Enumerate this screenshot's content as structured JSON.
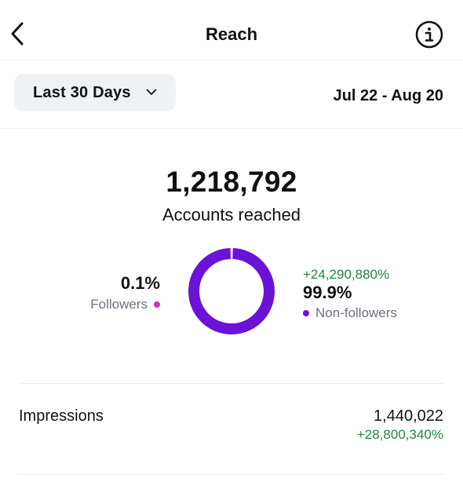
{
  "header": {
    "title": "Reach",
    "back_icon": "chevron-left-icon",
    "info_icon": "info-circle-icon"
  },
  "filters": {
    "range_label": "Last 30 Days",
    "range_icon": "chevron-down-icon",
    "date_range": "Jul 22 - Aug 20"
  },
  "summary": {
    "accounts_reached": "1,218,792",
    "accounts_reached_label": "Accounts reached"
  },
  "breakdown": {
    "followers": {
      "percent": "0.1%",
      "label": "Followers",
      "share": 0.1,
      "color": "#d62fb0"
    },
    "non_followers": {
      "change": "+24,290,880%",
      "percent": "99.9%",
      "label": "Non-followers",
      "share": 99.9,
      "color": "#6a12d6"
    }
  },
  "metrics": {
    "impressions": {
      "label": "Impressions",
      "value": "1,440,022",
      "change": "+28,800,340%"
    }
  },
  "colors": {
    "accent": "#6a12d6",
    "positive": "#22883e",
    "secondary_text": "#6b7280"
  }
}
